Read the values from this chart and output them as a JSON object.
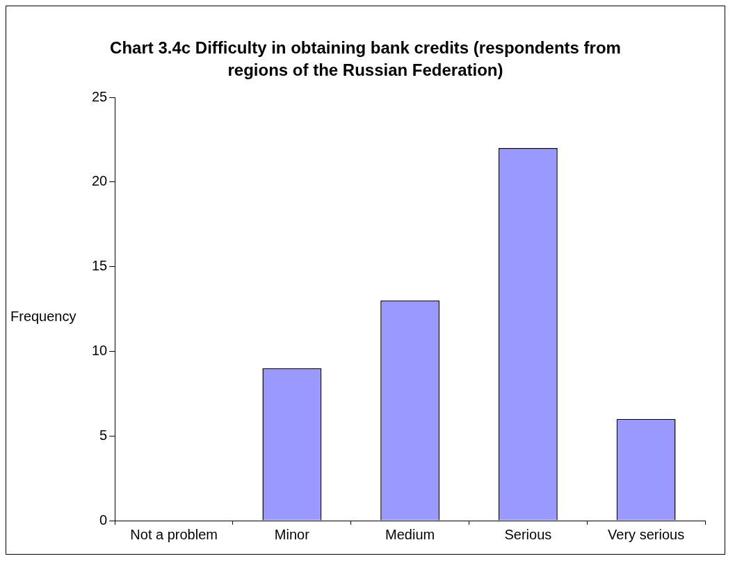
{
  "chart_data": {
    "type": "bar",
    "title": "Chart 3.4c Difficulty in obtaining bank credits (respondents from regions of the Russian Federation)",
    "ylabel": "Frequency",
    "categories": [
      "Not a problem",
      "Minor",
      "Medium",
      "Serious",
      "Very serious"
    ],
    "values": [
      0,
      9,
      13,
      22,
      6
    ],
    "color": "#9999ff",
    "ylim": [
      0,
      25
    ],
    "yticks": [
      0,
      5,
      10,
      15,
      20,
      25
    ],
    "grid": false,
    "legend": false
  }
}
